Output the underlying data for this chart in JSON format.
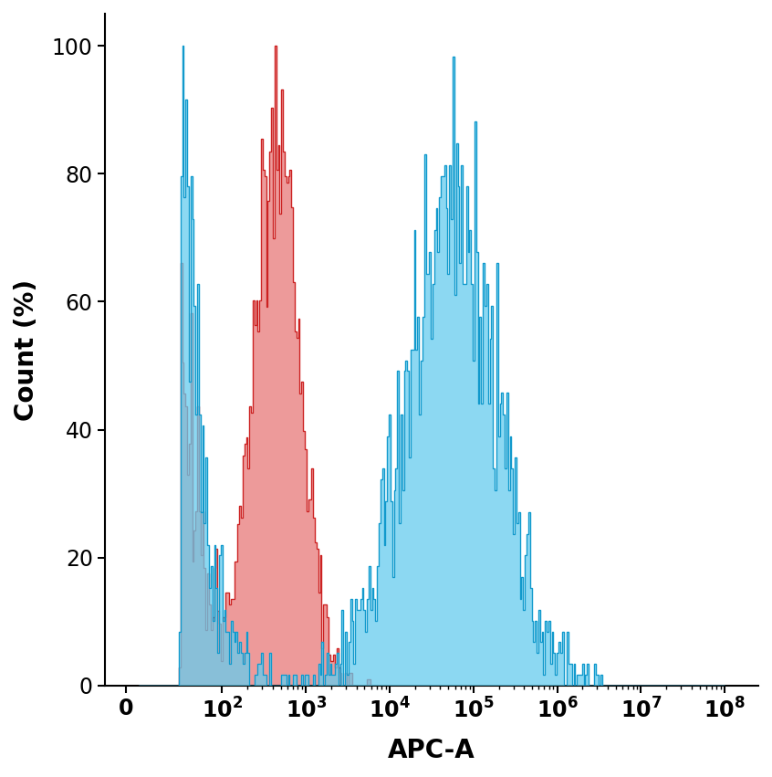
{
  "xlabel": "APC-A",
  "ylabel": "Count (%)",
  "ylim": [
    0,
    105
  ],
  "yticks": [
    0,
    20,
    40,
    60,
    80,
    100
  ],
  "red_fill_color": "#e87878",
  "red_edge_color": "#cc2222",
  "blue_fill_color": "#66ccee",
  "blue_edge_color": "#1199cc",
  "red_alpha": 0.75,
  "blue_alpha": 0.75,
  "background_color": "#ffffff",
  "xlabel_fontsize": 20,
  "ylabel_fontsize": 20,
  "tick_fontsize": 17,
  "seed": 42,
  "red_peak_log": 2.65,
  "red_spread": 0.28,
  "red_n": 3000,
  "blue_peak_log": 4.75,
  "blue_spread": 0.55,
  "blue_n": 3000,
  "xlim": [
    0.6,
    8.4
  ],
  "major_xtick_pos": [
    0.85,
    2,
    3,
    4,
    5,
    6,
    7,
    8
  ]
}
